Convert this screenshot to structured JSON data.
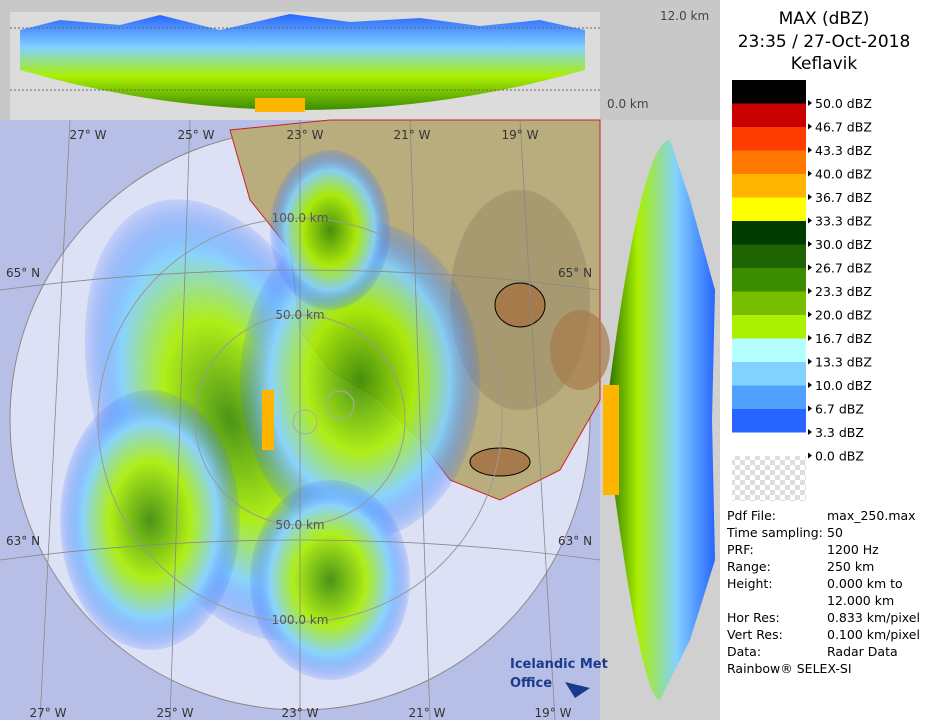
{
  "header": {
    "title": "MAX (dBZ)",
    "time": "23:35 / 27-Oct-2018",
    "site": "Keflavik"
  },
  "legend": [
    {
      "label": "50.0 dBZ",
      "color": "#000000"
    },
    {
      "label": "46.7 dBZ",
      "color": "#c80000"
    },
    {
      "label": "43.3 dBZ",
      "color": "#ff3c00"
    },
    {
      "label": "40.0 dBZ",
      "color": "#ff7800"
    },
    {
      "label": "36.7 dBZ",
      "color": "#ffb400"
    },
    {
      "label": "33.3 dBZ",
      "color": "#ffff00"
    },
    {
      "label": "30.0 dBZ",
      "color": "#003c00"
    },
    {
      "label": "26.7 dBZ",
      "color": "#1e6400"
    },
    {
      "label": "23.3 dBZ",
      "color": "#3c8c00"
    },
    {
      "label": "20.0 dBZ",
      "color": "#78be00"
    },
    {
      "label": "16.7 dBZ",
      "color": "#aaf000"
    },
    {
      "label": "13.3 dBZ",
      "color": "#b4ffff"
    },
    {
      "label": "10.0 dBZ",
      "color": "#82d2ff"
    },
    {
      "label": "6.7 dBZ",
      "color": "#50a0ff"
    },
    {
      "label": "3.3 dBZ",
      "color": "#2864ff"
    },
    {
      "label": "0.0 dBZ",
      "color": "#ffffff"
    }
  ],
  "info": [
    {
      "label": "Pdf File:",
      "value": "max_250.max"
    },
    {
      "label": "Time sampling:",
      "value": "50"
    },
    {
      "label": "PRF:",
      "value": "1200 Hz"
    },
    {
      "label": "Range:",
      "value": "250 km"
    },
    {
      "label": "Height:",
      "value": "0.000 km to"
    },
    {
      "label": "",
      "value": "12.000 km"
    },
    {
      "label": "Hor Res:",
      "value": "0.833 km/pixel"
    },
    {
      "label": "Vert Res:",
      "value": "0.100 km/pixel"
    },
    {
      "label": "Data:",
      "value": "Radar Data"
    }
  ],
  "footer": "Rainbow® SELEX-SI",
  "map": {
    "top_lon": [
      "27° W",
      "25° W",
      "23° W",
      "21° W",
      "19° W"
    ],
    "bottom_lon": [
      "27° W",
      "25° W",
      "23° W",
      "21° W",
      "19° W"
    ],
    "lat_left": [
      "65° N",
      "63° N"
    ],
    "lat_right": [
      "65° N",
      "63° N"
    ],
    "rings": [
      "100.0 km",
      "50.0 km",
      "50.0 km",
      "100.0 km"
    ],
    "height_top": "12.0 km",
    "height_bottom": "0.0 km",
    "logo": [
      "Icelandic Met",
      "Office"
    ]
  }
}
